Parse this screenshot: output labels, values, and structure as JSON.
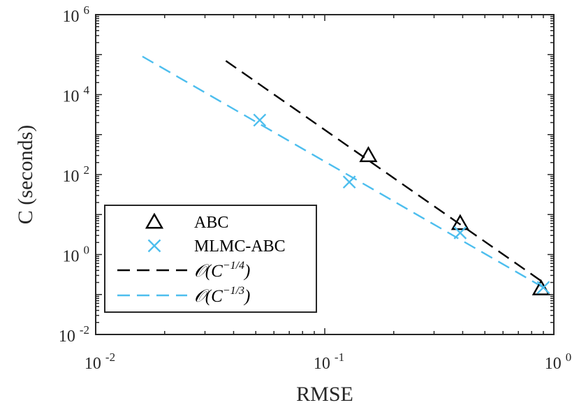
{
  "chart_data": {
    "type": "scatter",
    "title": "",
    "xlabel": "RMSE",
    "ylabel": "C (seconds)",
    "xscale": "log",
    "yscale": "log",
    "xlim": [
      0.01,
      1
    ],
    "ylim": [
      0.01,
      1000000
    ],
    "x_ticks": [
      {
        "base": "10",
        "exp": "-2"
      },
      {
        "base": "10",
        "exp": "-1"
      },
      {
        "base": "10",
        "exp": "0"
      }
    ],
    "y_ticks": [
      {
        "base": "10",
        "exp": "-2"
      },
      {
        "base": "10",
        "exp": "0"
      },
      {
        "base": "10",
        "exp": "2"
      },
      {
        "base": "10",
        "exp": "4"
      },
      {
        "base": "10",
        "exp": "6"
      }
    ],
    "grid": false,
    "legend_position": "lower-left",
    "series": [
      {
        "name": "ABC",
        "kind": "markers",
        "marker": "triangle",
        "color": "#000000",
        "x": [
          0.155,
          0.39,
          0.88
        ],
        "y": [
          300,
          6,
          0.14
        ]
      },
      {
        "name": "MLMC-ABC",
        "kind": "markers",
        "marker": "x",
        "color": "#4DBEEE",
        "x": [
          0.052,
          0.128,
          0.39,
          0.9
        ],
        "y": [
          2300,
          65,
          3.5,
          0.15
        ]
      },
      {
        "name": "O(C^-1/4)",
        "label_main": "𝒪(C",
        "label_sup": "−1/4",
        "label_close": ")",
        "kind": "line",
        "dash": "dashed",
        "color": "#000000",
        "x": [
          0.037,
          0.9
        ],
        "y": [
          70000,
          0.2
        ]
      },
      {
        "name": "O(C^-1/3)",
        "label_main": "𝒪(C",
        "label_sup": "−1/3",
        "label_close": ")",
        "kind": "line",
        "dash": "dashed",
        "color": "#4DBEEE",
        "x": [
          0.016,
          0.9
        ],
        "y": [
          90000,
          0.15
        ]
      }
    ]
  }
}
